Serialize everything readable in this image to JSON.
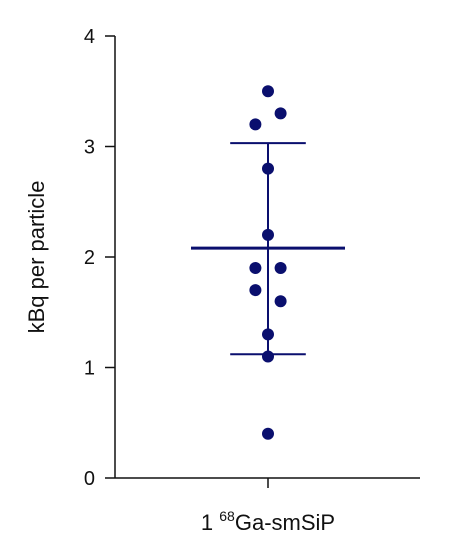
{
  "chart_data": {
    "type": "scatter",
    "title": "",
    "xlabel": "",
    "ylabel": "kBq per particle",
    "ylim": [
      0,
      4
    ],
    "yticks": [
      0,
      1,
      2,
      3,
      4
    ],
    "grid": false,
    "categories": [
      {
        "prefix": "1 ",
        "superscript": "68",
        "suffix": "Ga-smSiP"
      }
    ],
    "points": [
      {
        "x": 0,
        "y": 3.5
      },
      {
        "x": 0.09,
        "y": 3.3
      },
      {
        "x": -0.09,
        "y": 3.2
      },
      {
        "x": 0,
        "y": 2.8
      },
      {
        "x": 0,
        "y": 2.2
      },
      {
        "x": -0.09,
        "y": 1.9
      },
      {
        "x": 0.09,
        "y": 1.9
      },
      {
        "x": -0.09,
        "y": 1.7
      },
      {
        "x": 0.09,
        "y": 1.6
      },
      {
        "x": 0,
        "y": 1.3
      },
      {
        "x": 0,
        "y": 1.1
      },
      {
        "x": 0,
        "y": 0.4
      }
    ],
    "summary": {
      "mean": 2.08,
      "error_upper": 3.03,
      "error_lower": 1.12
    },
    "colors": {
      "point": "#0a0f6e",
      "summary_line": "#0a0f6e",
      "axis": "#111111"
    }
  }
}
